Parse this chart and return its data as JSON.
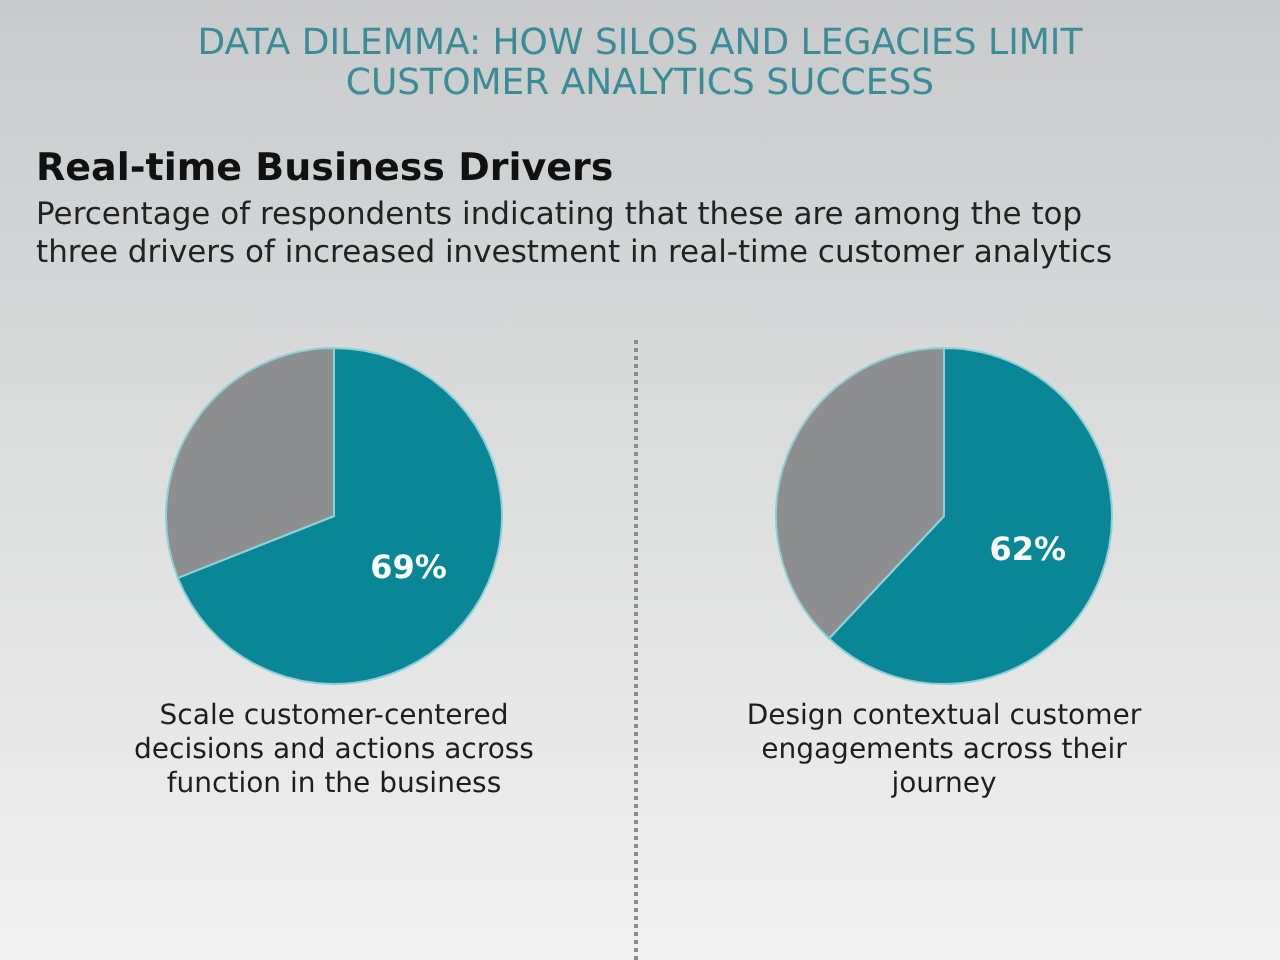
{
  "chart_data": [
    {
      "type": "other",
      "title": "DATA DILEMMA: HOW SILOS AND LEGACIES LIMIT CUSTOMER ANALYTICS SUCCESS",
      "subtitle": "Real-time Business Drivers",
      "annotations": [
        "Percentage of respondents indicating that these are among the top three drivers of increased investment in real-time customer analytics"
      ]
    },
    {
      "type": "pie",
      "title": "Scale customer-centered decisions and actions across function in the business",
      "categories": [
        null,
        null
      ],
      "values": [
        69,
        31
      ],
      "colors": [
        "#0a8796",
        "#8d8e90"
      ],
      "value_labels": [
        "69%",
        null
      ]
    },
    {
      "type": "pie",
      "title": "Design contextual customer engagements across their journey",
      "categories": [
        null,
        null
      ],
      "values": [
        62,
        38
      ],
      "colors": [
        "#0a8796",
        "#8d8e90"
      ],
      "value_labels": [
        "62%",
        null
      ]
    }
  ]
}
